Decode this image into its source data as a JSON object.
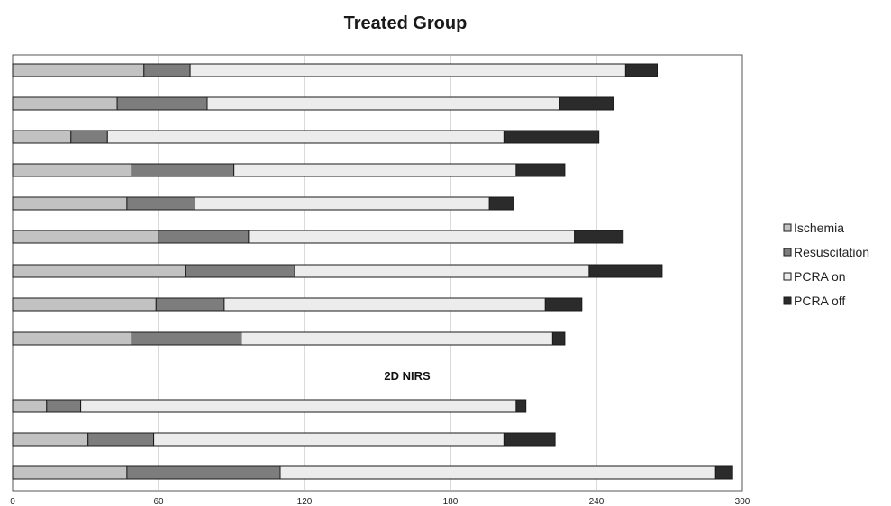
{
  "chart_data": {
    "type": "bar",
    "orientation": "horizontal",
    "stacked": true,
    "title": "Treated Group",
    "xlabel": "",
    "ylabel": "",
    "xlim": [
      0,
      300
    ],
    "xticks": [
      0,
      60,
      120,
      180,
      240,
      300
    ],
    "grid": true,
    "legend_position": "right",
    "annotation": "2D NIRS",
    "series": [
      {
        "name": "Ischemia",
        "color": "#c2c2c2"
      },
      {
        "name": "Resuscitation",
        "color": "#7d7d7d"
      },
      {
        "name": "PCRA on",
        "color": "#ececec"
      },
      {
        "name": "PCRA off",
        "color": "#2b2b2b"
      }
    ],
    "groups": [
      {
        "bars": [
          [
            54,
            19,
            179,
            13
          ],
          [
            43,
            37,
            145,
            22
          ],
          [
            24,
            15,
            163,
            39
          ],
          [
            49,
            42,
            116,
            20
          ],
          [
            47,
            28,
            121,
            10
          ],
          [
            60,
            37,
            134,
            20
          ],
          [
            71,
            45,
            121,
            30
          ],
          [
            59,
            28,
            132,
            15
          ],
          [
            49,
            45,
            128,
            5
          ]
        ]
      },
      {
        "bars": [
          [
            14,
            14,
            179,
            4
          ],
          [
            31,
            27,
            144,
            21
          ],
          [
            47,
            63,
            179,
            7
          ]
        ]
      }
    ]
  }
}
